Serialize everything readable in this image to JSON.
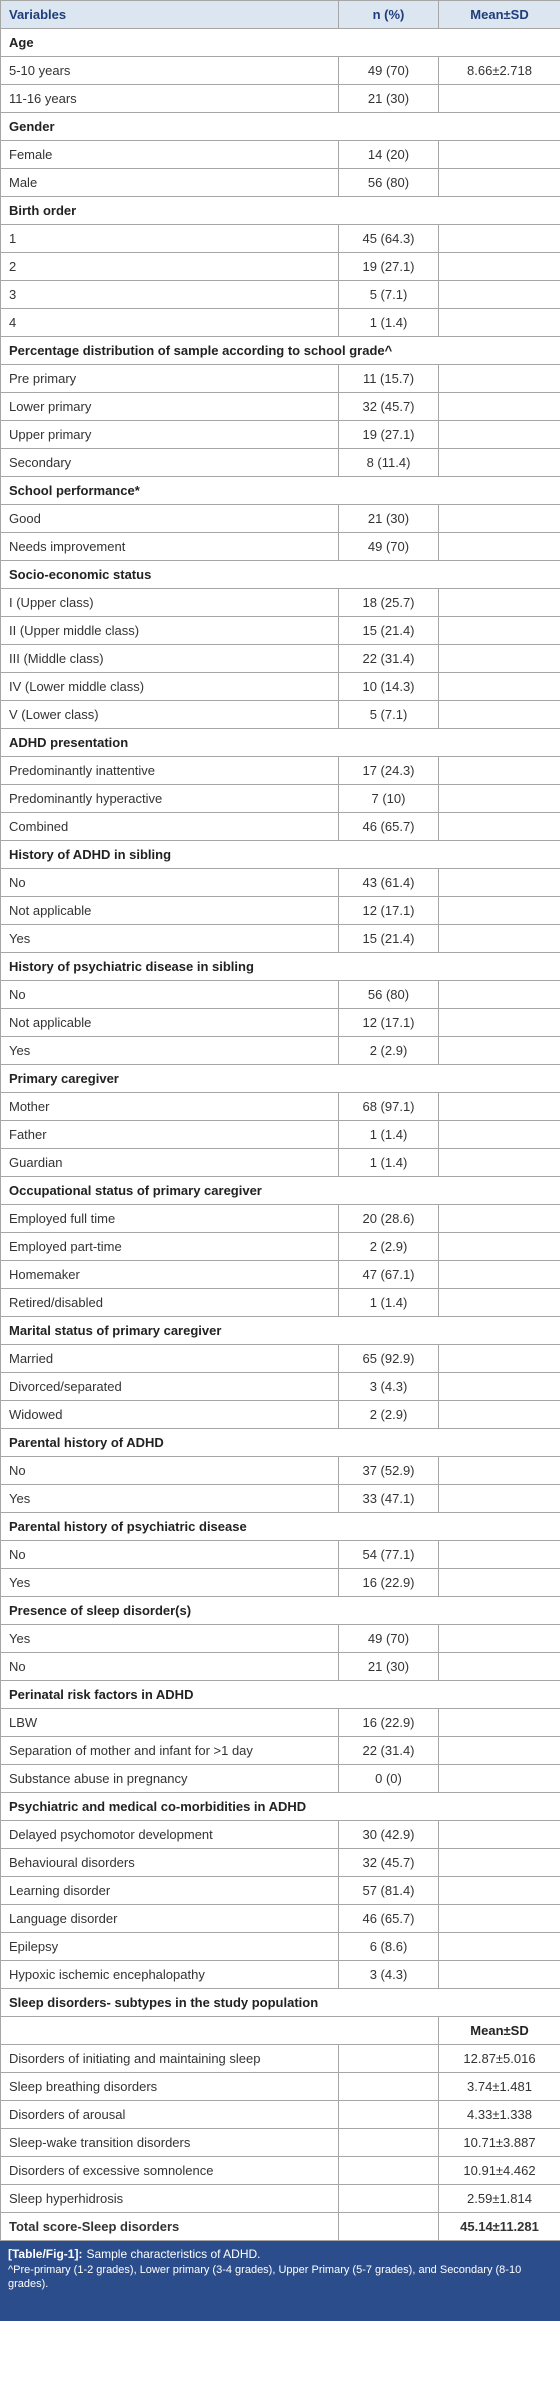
{
  "table": {
    "header": [
      "Variables",
      "n (%)",
      "Mean±SD"
    ],
    "sections": [
      {
        "title": "Age",
        "rows": [
          {
            "label": "5-10 years",
            "n": "49 (70)",
            "mean": "8.66±2.718"
          },
          {
            "label": "11-16 years",
            "n": "21 (30)"
          }
        ]
      },
      {
        "title": "Gender",
        "rows": [
          {
            "label": "Female",
            "n": "14 (20)"
          },
          {
            "label": "Male",
            "n": "56 (80)"
          }
        ]
      },
      {
        "title": "Birth order",
        "rows": [
          {
            "label": "1",
            "n": "45 (64.3)"
          },
          {
            "label": "2",
            "n": "19 (27.1)"
          },
          {
            "label": "3",
            "n": "5 (7.1)"
          },
          {
            "label": "4",
            "n": "1 (1.4)"
          }
        ]
      },
      {
        "title": "Percentage distribution of sample according to school grade^",
        "rows": [
          {
            "label": "Pre primary",
            "n": "11 (15.7)"
          },
          {
            "label": "Lower primary",
            "n": "32 (45.7)"
          },
          {
            "label": "Upper primary",
            "n": "19 (27.1)"
          },
          {
            "label": "Secondary",
            "n": "8 (11.4)"
          }
        ]
      },
      {
        "title": "School performance*",
        "rows": [
          {
            "label": "Good",
            "n": "21 (30)"
          },
          {
            "label": "Needs improvement",
            "n": "49 (70)"
          }
        ]
      },
      {
        "title": "Socio-economic status",
        "rows": [
          {
            "label": "I (Upper class)",
            "n": "18 (25.7)"
          },
          {
            "label": "II (Upper middle class)",
            "n": "15 (21.4)"
          },
          {
            "label": "III (Middle class)",
            "n": "22 (31.4)"
          },
          {
            "label": "IV (Lower middle class)",
            "n": "10 (14.3)"
          },
          {
            "label": "V (Lower class)",
            "n": "5 (7.1)"
          }
        ]
      },
      {
        "title": "ADHD presentation",
        "rows": [
          {
            "label": "Predominantly inattentive",
            "n": "17 (24.3)"
          },
          {
            "label": "Predominantly hyperactive",
            "n": "7 (10)"
          },
          {
            "label": "Combined",
            "n": "46 (65.7)"
          }
        ]
      },
      {
        "title": "History of ADHD in sibling",
        "rows": [
          {
            "label": "No",
            "n": "43 (61.4)"
          },
          {
            "label": "Not applicable",
            "n": "12 (17.1)"
          },
          {
            "label": "Yes",
            "n": "15 (21.4)"
          }
        ]
      },
      {
        "title": "History of psychiatric disease in sibling",
        "rows": [
          {
            "label": "No",
            "n": "56 (80)"
          },
          {
            "label": "Not applicable",
            "n": "12 (17.1)"
          },
          {
            "label": "Yes",
            "n": "2 (2.9)"
          }
        ]
      },
      {
        "title": "Primary caregiver",
        "rows": [
          {
            "label": "Mother",
            "n": "68 (97.1)"
          },
          {
            "label": "Father",
            "n": "1 (1.4)"
          },
          {
            "label": "Guardian",
            "n": "1 (1.4)"
          }
        ]
      },
      {
        "title": "Occupational status of primary caregiver",
        "rows": [
          {
            "label": "Employed full time",
            "n": "20 (28.6)"
          },
          {
            "label": "Employed part-time",
            "n": "2 (2.9)"
          },
          {
            "label": "Homemaker",
            "n": "47 (67.1)"
          },
          {
            "label": "Retired/disabled",
            "n": "1 (1.4)"
          }
        ]
      },
      {
        "title": "Marital status of primary caregiver",
        "rows": [
          {
            "label": "Married",
            "n": "65 (92.9)"
          },
          {
            "label": "Divorced/separated",
            "n": "3 (4.3)"
          },
          {
            "label": "Widowed",
            "n": "2 (2.9)"
          }
        ]
      },
      {
        "title": "Parental history of ADHD",
        "rows": [
          {
            "label": "No",
            "n": "37 (52.9)"
          },
          {
            "label": "Yes",
            "n": "33 (47.1)"
          }
        ]
      },
      {
        "title": "Parental history of psychiatric disease",
        "rows": [
          {
            "label": "No",
            "n": "54 (77.1)"
          },
          {
            "label": "Yes",
            "n": "16 (22.9)"
          }
        ]
      },
      {
        "title": "Presence of sleep disorder(s)",
        "rows": [
          {
            "label": "Yes",
            "n": "49 (70)"
          },
          {
            "label": "No",
            "n": "21 (30)"
          }
        ]
      },
      {
        "title": "Perinatal risk factors in ADHD",
        "rows": [
          {
            "label": "LBW",
            "n": "16 (22.9)"
          },
          {
            "label": "Separation of mother and infant for >1 day",
            "n": "22 (31.4)"
          },
          {
            "label": "Substance abuse in pregnancy",
            "n": "0 (0)"
          }
        ]
      },
      {
        "title": "Psychiatric and medical co-morbidities in ADHD",
        "rows": [
          {
            "label": "Delayed psychomotor development",
            "n": "30 (42.9)"
          },
          {
            "label": "Behavioural disorders",
            "n": "32 (45.7)"
          },
          {
            "label": "Learning disorder",
            "n": "57 (81.4)"
          },
          {
            "label": "Language disorder",
            "n": "46 (65.7)"
          },
          {
            "label": "Epilepsy",
            "n": "6 (8.6)"
          },
          {
            "label": "Hypoxic ischemic encephalopathy",
            "n": "3 (4.3)"
          }
        ]
      }
    ],
    "sleep": {
      "title": "Sleep disorders- subtypes in the study population",
      "subheader": "Mean±SD",
      "rows": [
        {
          "label": "Disorders of initiating and maintaining sleep",
          "mean": "12.87±5.016"
        },
        {
          "label": "Sleep breathing disorders",
          "mean": "3.74±1.481"
        },
        {
          "label": "Disorders of arousal",
          "mean": "4.33±1.338"
        },
        {
          "label": "Sleep-wake transition disorders",
          "mean": "10.71±3.887"
        },
        {
          "label": "Disorders of excessive somnolence",
          "mean": "10.91±4.462"
        },
        {
          "label": "Sleep hyperhidrosis",
          "mean": "2.59±1.814"
        }
      ],
      "total": {
        "label": "Total score-Sleep disorders",
        "mean": "45.14±11.281"
      }
    }
  },
  "caption": {
    "title": "[Table/Fig-1]:",
    "text": "Sample characteristics of ADHD.",
    "note": "^Pre-primary (1-2 grades), Lower primary (3-4 grades), Upper Primary (5-7 grades), and Secondary (8-10 grades)."
  }
}
